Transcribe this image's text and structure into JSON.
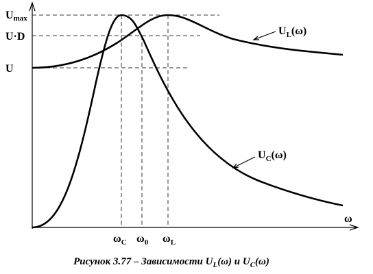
{
  "y_labels": [
    {
      "text": "U",
      "sub": "max"
    },
    {
      "text": "U·D"
    },
    {
      "text": "U"
    }
  ],
  "x_labels": [
    {
      "text": "ω",
      "sub": "C"
    },
    {
      "text": "ω",
      "sub": "0"
    },
    {
      "text": "ω",
      "sub": "L"
    }
  ],
  "x_axis_label": "ω",
  "curves": [
    {
      "text": "U",
      "sub": "L",
      "arg": "(ω)"
    },
    {
      "text": "U",
      "sub": "C",
      "arg": "(ω)"
    }
  ],
  "caption": {
    "prefix": "Рисунок 3.77 – Зависимости U",
    "sub1": "L",
    "mid": "(ω) и U",
    "sub2": "C",
    "suffix": "(ω)"
  }
}
